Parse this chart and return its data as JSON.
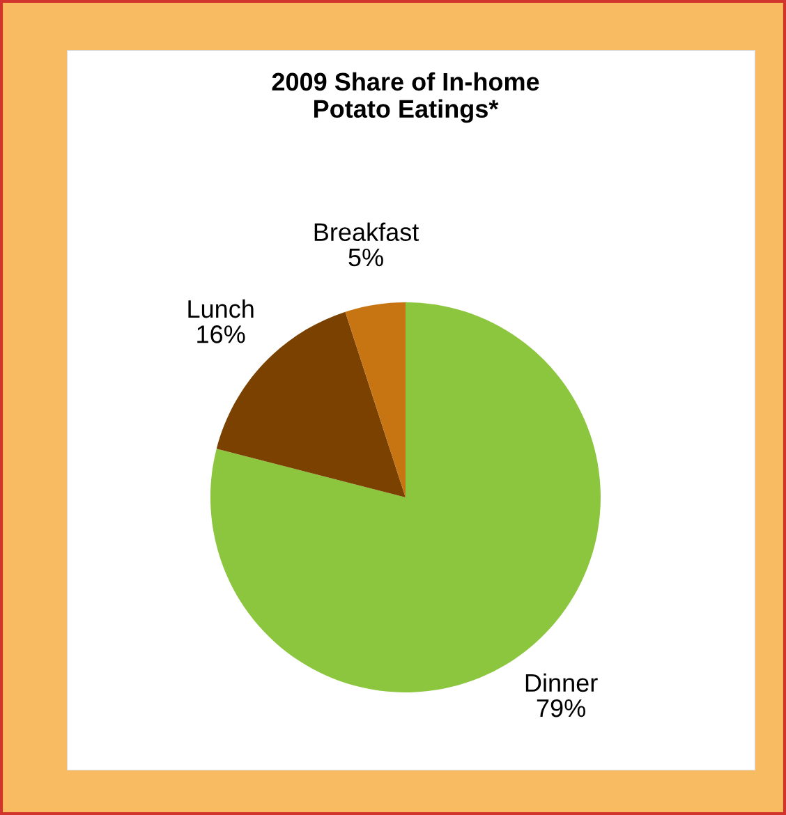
{
  "chart_data": {
    "type": "pie",
    "title": "2009 Share of In-home\nPotato Eatings*",
    "categories": [
      "Dinner",
      "Lunch",
      "Breakfast"
    ],
    "values": [
      79,
      16,
      5
    ],
    "value_labels": [
      "79%",
      "16%",
      "5%"
    ],
    "colors": [
      "#8cc63e",
      "#7a4100",
      "#c77512"
    ],
    "legend": false
  }
}
